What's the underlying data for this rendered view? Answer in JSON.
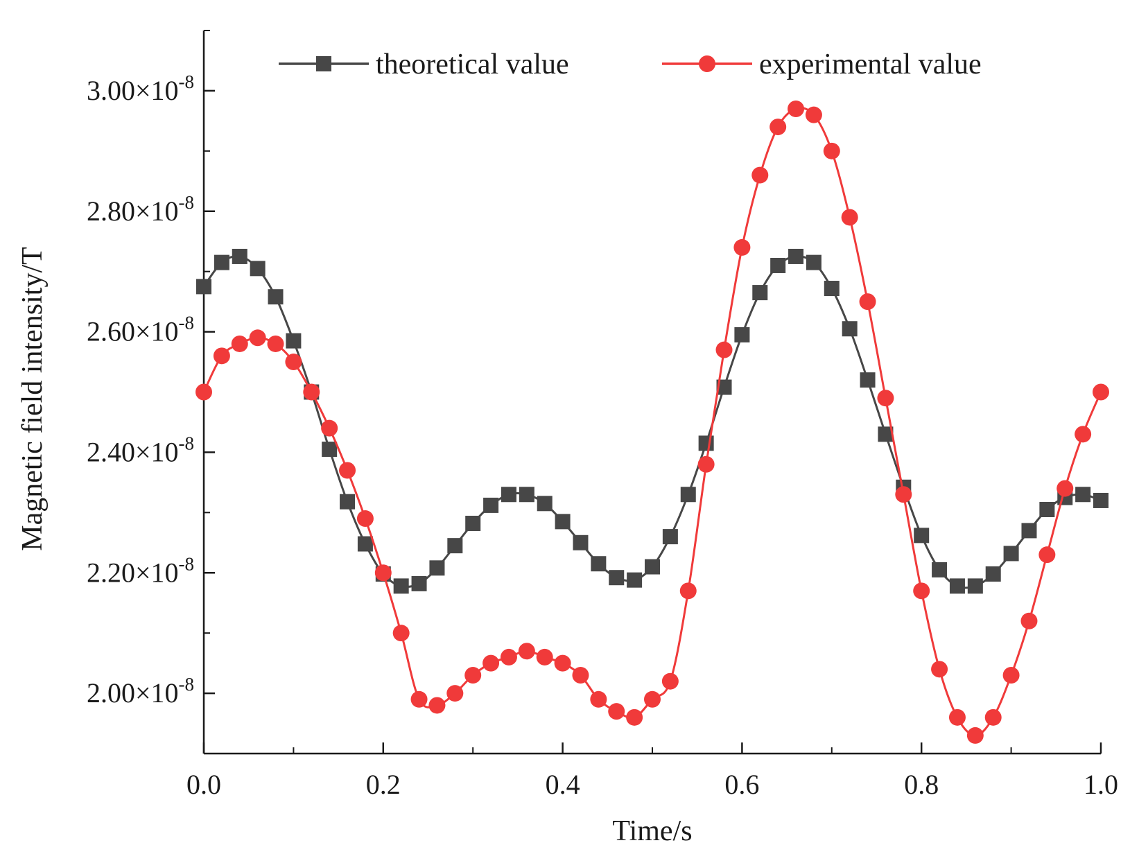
{
  "chart_data": {
    "type": "line",
    "title": "",
    "xlabel": "Time/s",
    "ylabel": "Magnetic field intensity/T",
    "xlim": [
      0,
      1
    ],
    "ylim": [
      1.9,
      3.1
    ],
    "ytick_exponent": "-8",
    "ytick_separator": "×10",
    "xticks": [
      0.0,
      0.2,
      0.4,
      0.6,
      0.8,
      1.0
    ],
    "xtick_labels": [
      "0.0",
      "0.2",
      "0.4",
      "0.6",
      "0.8",
      "1.0"
    ],
    "yticks": [
      2.0,
      2.2,
      2.4,
      2.6,
      2.8,
      3.0
    ],
    "ytick_labels": [
      "2.00",
      "2.20",
      "2.40",
      "2.60",
      "2.80",
      "3.00"
    ],
    "grid": false,
    "legend_position": "top",
    "x": [
      0.0,
      0.02,
      0.04,
      0.06,
      0.08,
      0.1,
      0.12,
      0.14,
      0.16,
      0.18,
      0.2,
      0.22,
      0.24,
      0.26,
      0.28,
      0.3,
      0.32,
      0.34,
      0.36,
      0.38,
      0.4,
      0.42,
      0.44,
      0.46,
      0.48,
      0.5,
      0.52,
      0.54,
      0.56,
      0.58,
      0.6,
      0.62,
      0.64,
      0.66,
      0.68,
      0.7,
      0.72,
      0.74,
      0.76,
      0.78,
      0.8,
      0.82,
      0.84,
      0.86,
      0.88,
      0.9,
      0.92,
      0.94,
      0.96,
      0.98,
      1.0
    ],
    "series": [
      {
        "name": "theoretical value",
        "marker": "square",
        "color": "#474747",
        "values": [
          2.675,
          2.715,
          2.725,
          2.705,
          2.658,
          2.585,
          2.5,
          2.405,
          2.318,
          2.248,
          2.198,
          2.178,
          2.182,
          2.208,
          2.245,
          2.282,
          2.312,
          2.33,
          2.33,
          2.315,
          2.285,
          2.25,
          2.215,
          2.192,
          2.188,
          2.21,
          2.26,
          2.33,
          2.415,
          2.508,
          2.595,
          2.665,
          2.71,
          2.725,
          2.715,
          2.672,
          2.605,
          2.52,
          2.43,
          2.342,
          2.262,
          2.205,
          2.178,
          2.178,
          2.198,
          2.232,
          2.27,
          2.305,
          2.325,
          2.33,
          2.32
        ]
      },
      {
        "name": "experimental value",
        "marker": "circle",
        "color": "#f03a3a",
        "values": [
          2.5,
          2.56,
          2.58,
          2.59,
          2.58,
          2.55,
          2.5,
          2.44,
          2.37,
          2.29,
          2.2,
          2.1,
          1.99,
          1.98,
          2.0,
          2.03,
          2.05,
          2.06,
          2.07,
          2.06,
          2.05,
          2.03,
          1.99,
          1.97,
          1.96,
          1.99,
          2.02,
          2.17,
          2.38,
          2.57,
          2.74,
          2.86,
          2.94,
          2.97,
          2.96,
          2.9,
          2.79,
          2.65,
          2.49,
          2.33,
          2.17,
          2.04,
          1.96,
          1.93,
          1.96,
          2.03,
          2.12,
          2.23,
          2.34,
          2.43,
          2.5
        ]
      }
    ]
  }
}
